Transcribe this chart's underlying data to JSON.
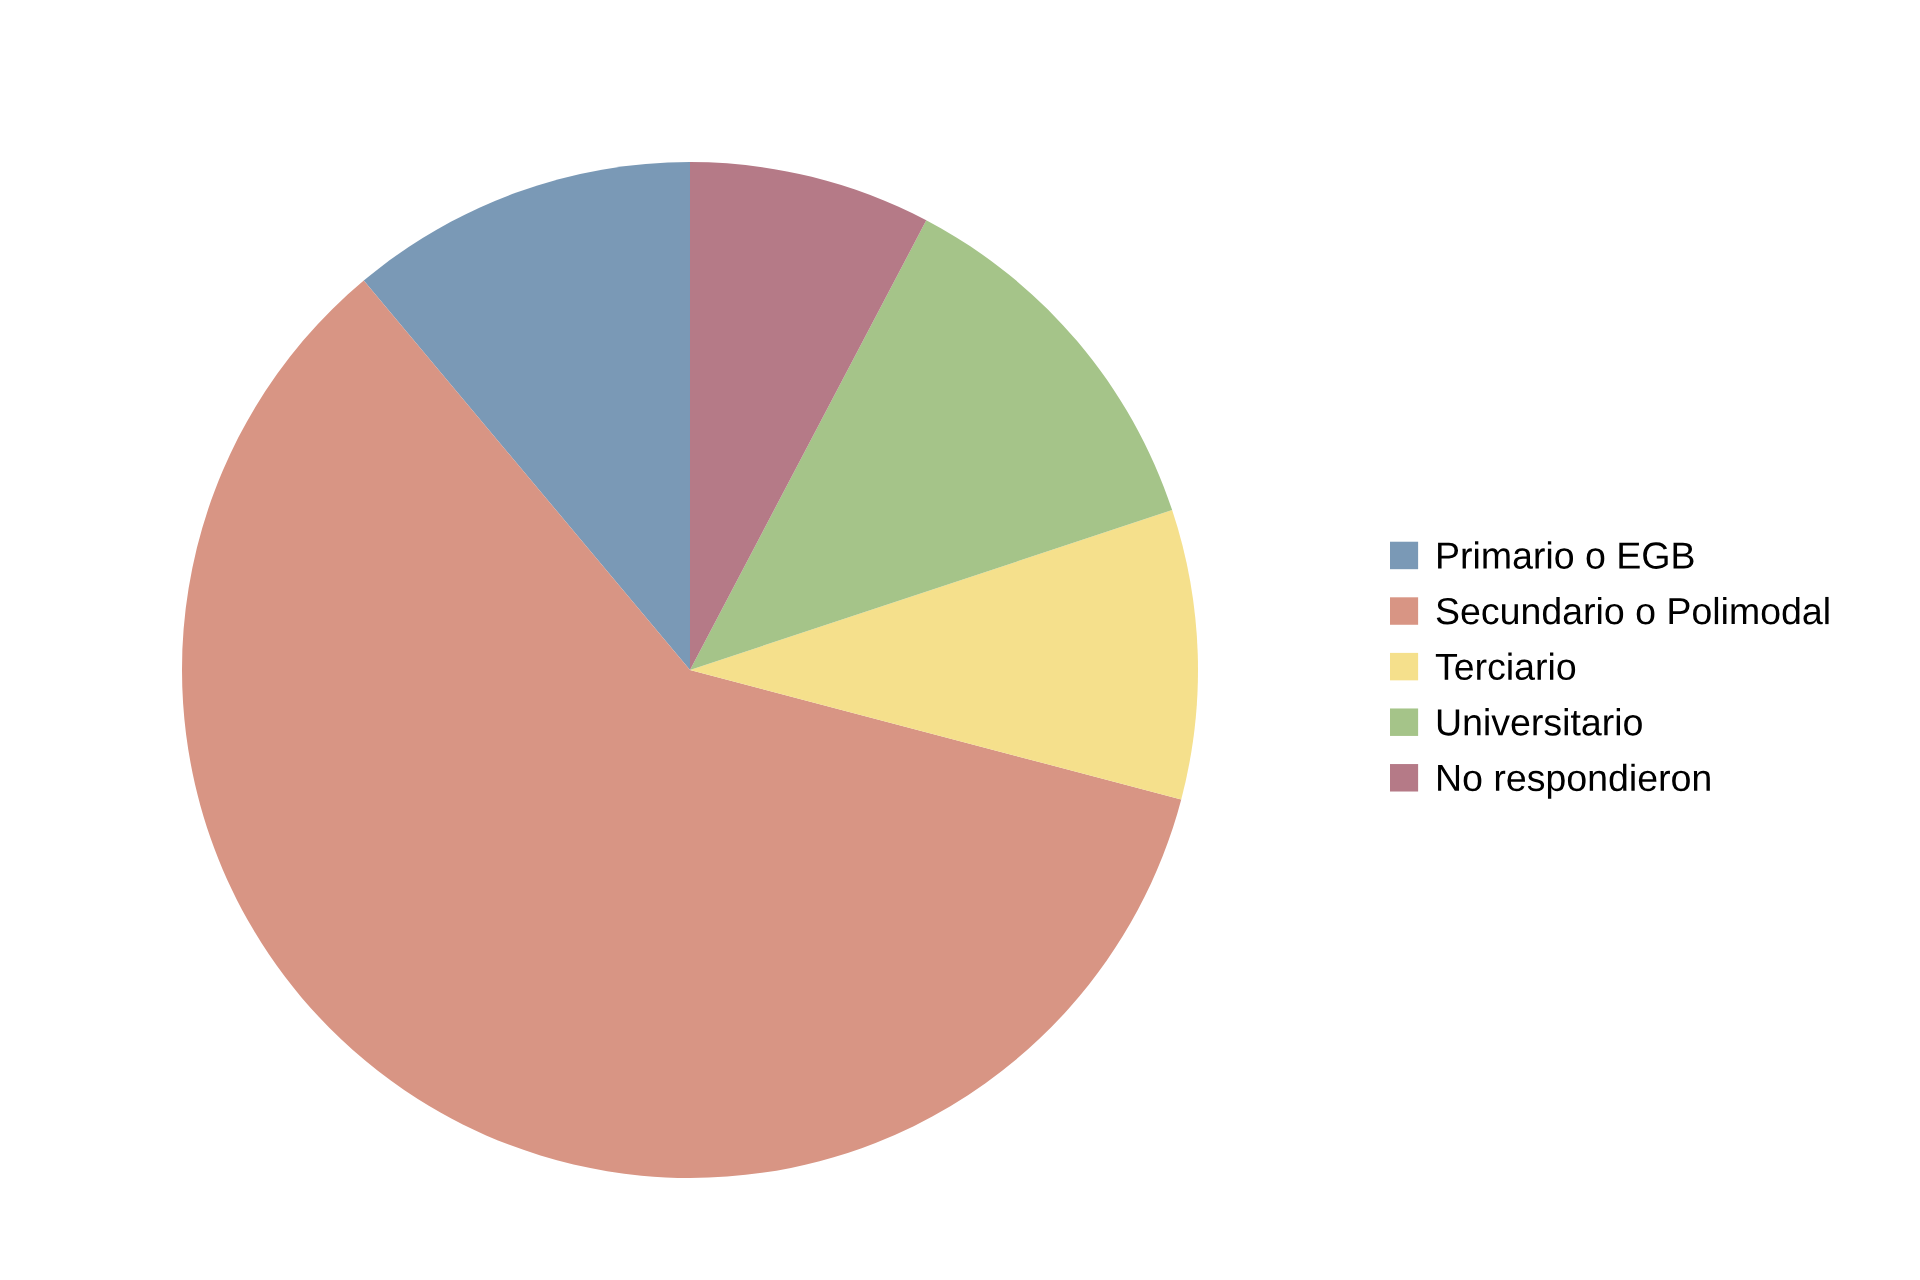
{
  "chart_data": {
    "type": "pie",
    "categories": [
      "Primario o EGB",
      "Secundario o Polimodal",
      "Terciario",
      "Universitario",
      "No respondieron"
    ],
    "values": [
      11.1,
      59.8,
      9.2,
      12.2,
      7.7
    ],
    "colors": [
      "#7a99b6",
      "#d89584",
      "#f5e08c",
      "#a5c489",
      "#b57a87"
    ],
    "legend": "right"
  }
}
